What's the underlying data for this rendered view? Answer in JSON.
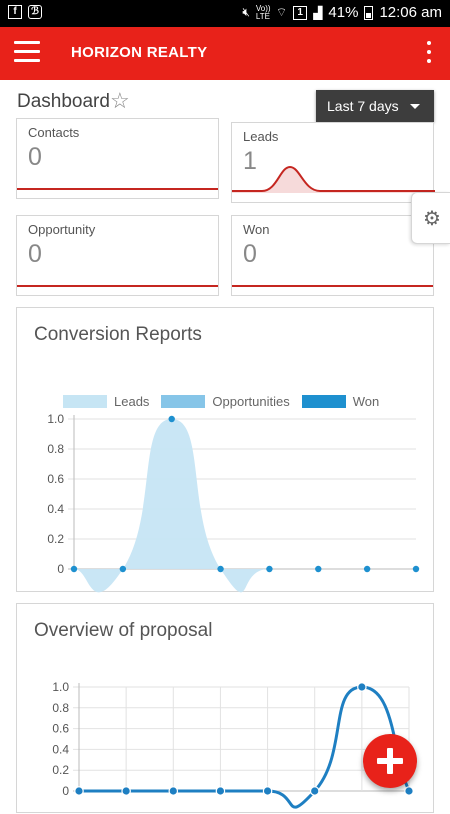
{
  "status_bar": {
    "battery": "41%",
    "time": "12:06 am",
    "volte_label": "Vo)) LTE",
    "sim_label": "1",
    "icons": [
      "facebook-icon",
      "app-icon",
      "mute-icon",
      "wifi-icon",
      "signal-icon",
      "battery-icon"
    ]
  },
  "app_bar": {
    "title": "HORIZON REALTY",
    "menu_icon": "hamburger-icon",
    "overflow_icon": "more-vert-icon",
    "color": "#e8221a"
  },
  "dashboard": {
    "title": "Dashboard",
    "favorite_icon": "star-outline-icon",
    "date_range": "Last 7 days"
  },
  "cards": [
    {
      "label": "Contacts",
      "value": "0"
    },
    {
      "label": "Leads",
      "value": "1"
    },
    {
      "label": "Opportunity",
      "value": "0"
    },
    {
      "label": "Won",
      "value": "0"
    }
  ],
  "settings_icon": "gear-icon",
  "conversion_report": {
    "title": "Conversion Reports",
    "legend": [
      "Leads",
      "Opportunities",
      "Won"
    ]
  },
  "proposal_overview": {
    "title": "Overview of proposal"
  },
  "fab_icon": "plus-icon",
  "chart_data": [
    {
      "type": "area",
      "title": "Conversion Reports",
      "x": [
        1,
        2,
        3,
        4,
        5,
        6,
        7,
        8
      ],
      "yticks": [
        "0",
        "0.2",
        "0.4",
        "0.6",
        "0.8",
        "1.0"
      ],
      "ylim": [
        0,
        1
      ],
      "legend_position": "top",
      "series": [
        {
          "name": "Leads",
          "values": [
            0,
            0,
            1,
            0,
            0,
            0,
            0,
            0
          ],
          "color": "#c6e5f4"
        },
        {
          "name": "Opportunities",
          "values": [
            0,
            0,
            0,
            0,
            0,
            0,
            0,
            0
          ],
          "color": "#86c5e8"
        },
        {
          "name": "Won",
          "values": [
            0,
            0,
            0,
            0,
            0,
            0,
            0,
            0
          ],
          "color": "#1e90cf"
        }
      ]
    },
    {
      "type": "line",
      "title": "Overview of proposal",
      "x": [
        1,
        2,
        3,
        4,
        5,
        6,
        7,
        8
      ],
      "yticks": [
        "0",
        "0.2",
        "0.4",
        "0.6",
        "0.8",
        "1.0"
      ],
      "ylim": [
        0,
        1
      ],
      "grid": true,
      "series": [
        {
          "values": [
            0,
            0,
            0,
            0,
            0,
            0,
            1,
            0
          ],
          "color": "#1e7fc2"
        }
      ]
    }
  ]
}
